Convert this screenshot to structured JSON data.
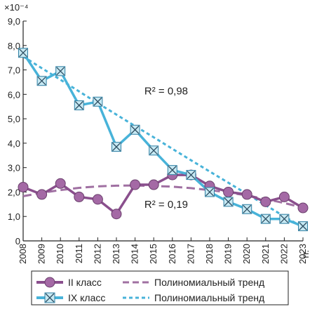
{
  "colors": {
    "series_ii": "#8a4f8d",
    "series_ii_marker": "#a469a5",
    "series_ix": "#48b3d9",
    "series_ix_marker": "#c7e9f3",
    "trend_ii": "#a070a2",
    "trend_ix": "#48b3d9",
    "axis": "#222222"
  },
  "chart_data": {
    "type": "line",
    "title": "",
    "xlabel": "",
    "ylabel": "",
    "y_multiplier_label": "×10⁻⁴",
    "x_unit_label": "гг.",
    "x": [
      2008,
      2009,
      2010,
      2011,
      2012,
      2013,
      2014,
      2015,
      2016,
      2017,
      2018,
      2019,
      2020,
      2021,
      2022,
      2023
    ],
    "x_tick_labels": [
      "2008",
      "2009",
      "2010",
      "2011",
      "2012",
      "2013",
      "2014",
      "2015",
      "2016",
      "2017",
      "2018",
      "2019",
      "2020",
      "2021",
      "2022",
      "2023"
    ],
    "ylim": [
      0,
      9
    ],
    "y_ticks": [
      0,
      1,
      2,
      3,
      4,
      5,
      6,
      7,
      8,
      9
    ],
    "y_tick_labels": [
      "0",
      "1,0",
      "2,0",
      "3,0",
      "4,0",
      "5,0",
      "6,0",
      "7,0",
      "8,0",
      "9,0"
    ],
    "grid": false,
    "legend_position": "bottom",
    "series": [
      {
        "name": "II класс",
        "kind": "data",
        "marker": "circle",
        "values": [
          2.2,
          1.9,
          2.35,
          1.8,
          1.7,
          1.1,
          2.3,
          2.3,
          2.7,
          2.7,
          2.25,
          2.0,
          1.9,
          1.6,
          1.8,
          1.35
        ]
      },
      {
        "name": "IX класс",
        "kind": "data",
        "marker": "x-square",
        "values": [
          7.7,
          6.55,
          6.95,
          5.55,
          5.7,
          3.85,
          4.55,
          3.7,
          2.9,
          2.7,
          2.0,
          1.6,
          1.3,
          0.9,
          0.9,
          0.6
        ]
      },
      {
        "name": "Полиномиальный тренд",
        "kind": "trend",
        "of": "II класс",
        "values": [
          1.83,
          1.97,
          2.08,
          2.17,
          2.23,
          2.26,
          2.27,
          2.25,
          2.22,
          2.16,
          2.08,
          1.98,
          1.86,
          1.71,
          1.55,
          1.36
        ]
      },
      {
        "name": "Полиномиальный тренд",
        "kind": "trend",
        "of": "IX класс",
        "values": [
          7.55,
          7.07,
          6.6,
          6.12,
          5.64,
          5.17,
          4.7,
          4.24,
          3.77,
          3.3,
          2.84,
          2.38,
          1.92,
          1.46,
          1.0,
          0.55
        ]
      }
    ],
    "annotations": [
      {
        "text": "R² = 0,98",
        "x": 2014.5,
        "y": 6.0
      },
      {
        "text": "R² = 0,19",
        "x": 2014.5,
        "y": 1.35
      }
    ]
  }
}
